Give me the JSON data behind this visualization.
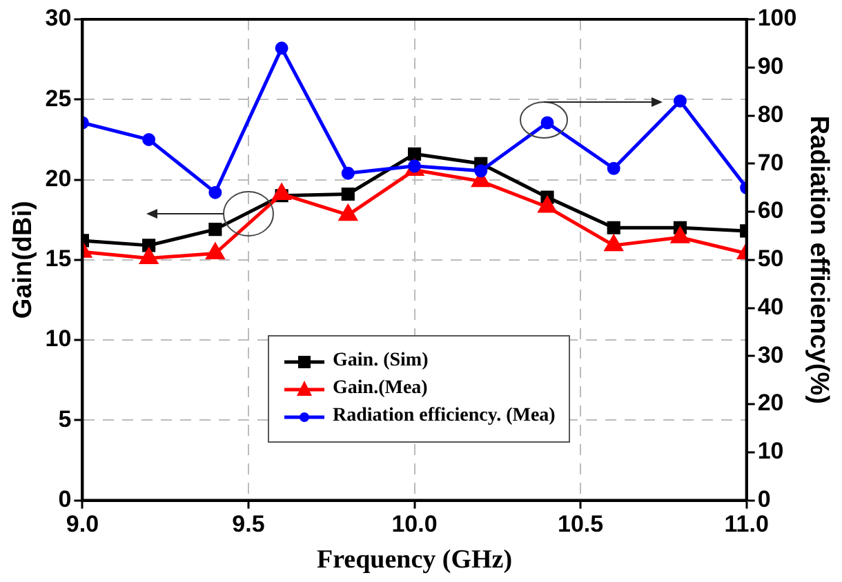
{
  "chart_data": {
    "type": "line",
    "xlabel": "Frequency (GHz)",
    "ylabel": "Gain(dBi)",
    "y2label": "Radiation efficiency(%)",
    "x": [
      9.0,
      9.2,
      9.4,
      9.6,
      9.8,
      10.0,
      10.2,
      10.4,
      10.6,
      10.8,
      11.0
    ],
    "series": [
      {
        "name": "Gain. (Sim)",
        "color": "#000000",
        "marker": "square",
        "values": [
          16.2,
          15.9,
          16.9,
          19.0,
          19.1,
          21.6,
          21.0,
          18.9,
          17.0,
          17.0,
          16.8
        ]
      },
      {
        "name": "Gain.(Mea)",
        "color": "#ff0000",
        "marker": "triangle",
        "values": [
          15.5,
          15.1,
          15.4,
          19.1,
          17.8,
          20.6,
          19.9,
          18.3,
          15.9,
          16.4,
          15.4
        ]
      },
      {
        "name": "Radiation efficiency. (Mea)",
        "color": "#0000ff",
        "marker": "circle",
        "axis": "y2",
        "values": [
          78.5,
          75,
          64,
          94,
          68,
          69.5,
          68.5,
          78.5,
          69,
          83,
          65
        ]
      }
    ],
    "xlim": [
      9.0,
      11.0
    ],
    "xticks": [
      {
        "value": 9.0,
        "label": "9.0"
      },
      {
        "value": 9.5,
        "label": "9.5"
      },
      {
        "value": 10.0,
        "label": "10.0"
      },
      {
        "value": 10.5,
        "label": "10.5"
      },
      {
        "value": 11.0,
        "label": "11.0"
      }
    ],
    "ylim": [
      0,
      30
    ],
    "yticks": [
      0,
      5,
      10,
      15,
      20,
      25,
      30
    ],
    "y2lim": [
      0,
      100
    ],
    "y2ticks": [
      0,
      10,
      20,
      30,
      40,
      50,
      60,
      70,
      80,
      90,
      100
    ],
    "grid": true,
    "legend": "bottom",
    "line_style": "solid"
  }
}
